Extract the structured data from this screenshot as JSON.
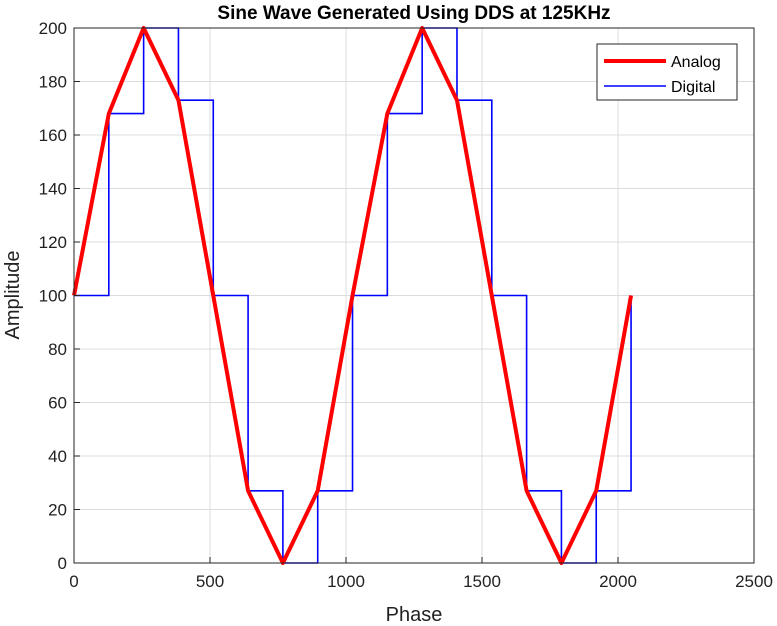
{
  "chart_data": {
    "type": "line",
    "title": "Sine Wave Generated Using DDS at 125KHz",
    "xlabel": "Phase",
    "ylabel": "Amplitude",
    "xlim": [
      0,
      2500
    ],
    "ylim": [
      0,
      200
    ],
    "xticks": [
      0,
      500,
      1000,
      1500,
      2000,
      2500
    ],
    "yticks": [
      0,
      20,
      40,
      60,
      80,
      100,
      120,
      140,
      160,
      180,
      200
    ],
    "grid": true,
    "legend_position": "top-right",
    "series": [
      {
        "name": "Analog",
        "style": "line",
        "color": "#ff0000",
        "x": [
          0,
          128,
          256,
          384,
          512,
          640,
          768,
          896,
          1024,
          1152,
          1280,
          1408,
          1536,
          1664,
          1792,
          1920,
          2048
        ],
        "y": [
          100,
          168,
          200,
          173,
          100,
          27,
          0,
          27,
          100,
          168,
          200,
          173,
          100,
          27,
          0,
          27,
          100
        ]
      },
      {
        "name": "Digital",
        "style": "step",
        "color": "#0000ff",
        "x": [
          0,
          128,
          256,
          384,
          512,
          640,
          768,
          896,
          1024,
          1152,
          1280,
          1408,
          1536,
          1664,
          1792,
          1920,
          2048
        ],
        "y": [
          100,
          168,
          200,
          173,
          100,
          27,
          0,
          27,
          100,
          168,
          200,
          173,
          100,
          27,
          0,
          27,
          100
        ]
      }
    ]
  }
}
